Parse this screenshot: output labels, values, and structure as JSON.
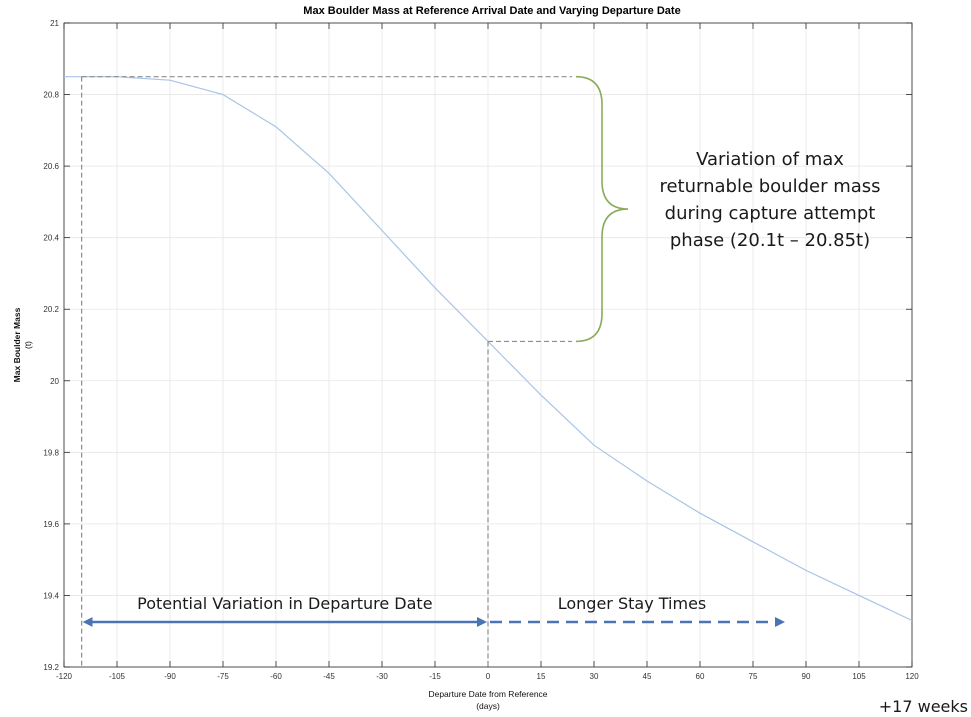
{
  "chart_data": {
    "type": "line",
    "title": "Max Boulder Mass at Reference Arrival Date and Varying Departure Date",
    "xlabel": [
      "Departure Date from Reference",
      "(days)"
    ],
    "ylabel": [
      "Max Boulder Mass",
      "(t)"
    ],
    "xlim": [
      -120,
      120
    ],
    "ylim": [
      19.2,
      21
    ],
    "xticks": [
      -120,
      -105,
      -90,
      -75,
      -60,
      -45,
      -30,
      -15,
      0,
      15,
      30,
      45,
      60,
      75,
      90,
      105,
      120
    ],
    "yticks": [
      19.2,
      19.4,
      19.6,
      19.8,
      20,
      20.2,
      20.4,
      20.6,
      20.8,
      21
    ],
    "grid": true,
    "series": [
      {
        "x": [
          -120,
          -105,
          -90,
          -75,
          -60,
          -45,
          -30,
          -15,
          0,
          15,
          30,
          45,
          60,
          75,
          90,
          105,
          120
        ],
        "y": [
          20.85,
          20.85,
          20.84,
          20.8,
          20.71,
          20.58,
          20.42,
          20.26,
          20.11,
          19.96,
          19.82,
          19.72,
          19.63,
          19.55,
          19.47,
          19.4,
          19.33
        ],
        "color": "#a9c4e8"
      }
    ],
    "annotations": {
      "brace_text": [
        "Variation of max",
        "returnable boulder mass",
        "during capture attempt",
        "phase (20.1t – 20.85t)"
      ],
      "brace_color": "#8aab5c",
      "reference_lines": {
        "upper_y": 20.85,
        "lower_y": 20.11,
        "left_x": -115,
        "split_x": 0
      },
      "arrow_left_label": "Potential Variation in Departure Date",
      "arrow_right_label": "Longer Stay Times",
      "arrow_color": "#4a74b4",
      "footer_note": "+17 weeks"
    }
  }
}
